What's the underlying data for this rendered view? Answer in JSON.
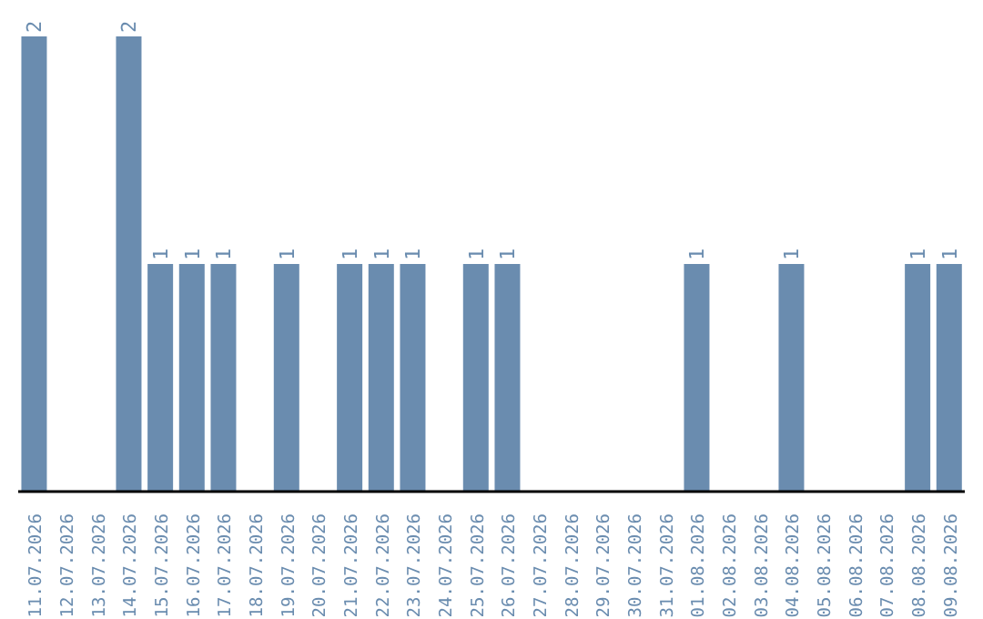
{
  "chart_data": {
    "type": "bar",
    "categories": [
      "11.07.2026",
      "12.07.2026",
      "13.07.2026",
      "14.07.2026",
      "15.07.2026",
      "16.07.2026",
      "17.07.2026",
      "18.07.2026",
      "19.07.2026",
      "20.07.2026",
      "21.07.2026",
      "22.07.2026",
      "23.07.2026",
      "24.07.2026",
      "25.07.2026",
      "26.07.2026",
      "27.07.2026",
      "28.07.2026",
      "29.07.2026",
      "30.07.2026",
      "31.07.2026",
      "01.08.2026",
      "02.08.2026",
      "03.08.2026",
      "04.08.2026",
      "05.08.2026",
      "06.08.2026",
      "07.08.2026",
      "08.08.2026",
      "09.08.2026"
    ],
    "values": [
      2,
      0,
      0,
      2,
      1,
      1,
      1,
      0,
      1,
      0,
      1,
      1,
      1,
      0,
      1,
      1,
      0,
      0,
      0,
      0,
      0,
      1,
      0,
      0,
      1,
      0,
      0,
      0,
      1,
      1
    ],
    "value_labels": [
      "2",
      null,
      null,
      "2",
      "1",
      "1",
      "1",
      null,
      "1",
      null,
      "1",
      "1",
      "1",
      null,
      "1",
      "1",
      null,
      null,
      null,
      null,
      null,
      "1",
      null,
      null,
      "1",
      null,
      null,
      null,
      "1",
      "1"
    ],
    "color": "#6a8caf",
    "grid": false,
    "legend": false,
    "tick_labels": "x"
  }
}
